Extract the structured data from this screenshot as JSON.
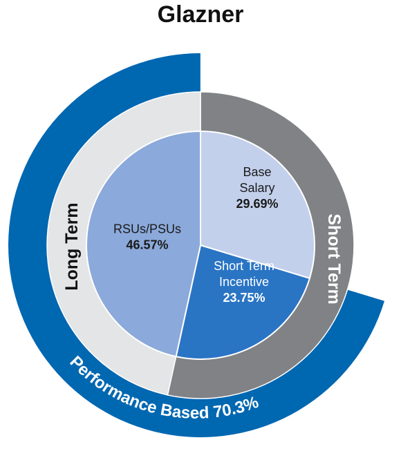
{
  "chart_data": {
    "type": "pie",
    "title": "Glazner",
    "inner": {
      "slices": [
        {
          "label": [
            "Base",
            "Salary"
          ],
          "value": 29.69,
          "value_label": "29.69%",
          "color": "#c3d0ec",
          "text_color": "#1a1a1a"
        },
        {
          "label": [
            "Short Term",
            "Incentive"
          ],
          "value": 23.75,
          "value_label": "23.75%",
          "color": "#2a74c4",
          "text_color": "#ffffff"
        },
        {
          "label": [
            "RSUs/PSUs"
          ],
          "value": 46.57,
          "value_label": "46.57%",
          "color": "#8ba9da",
          "text_color": "#1a1a1a"
        }
      ]
    },
    "middle": {
      "segments": [
        {
          "label": "Short Term",
          "value": 53.44,
          "color": "#808285",
          "text_color": "#ffffff"
        },
        {
          "label": "Long Term",
          "value": 46.57,
          "color": "#e4e5e6",
          "text_color": "#111111"
        }
      ]
    },
    "outer": {
      "label": "Performance Based 70.3%",
      "value": 70.3,
      "color": "#0067b1",
      "text_color": "#ffffff"
    }
  }
}
